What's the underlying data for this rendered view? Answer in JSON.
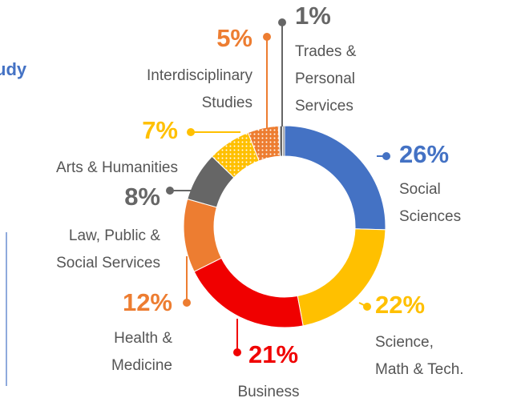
{
  "header": {
    "fragment": "udy"
  },
  "chart_data": {
    "type": "donut",
    "categories": [
      [
        "Social",
        "Sciences"
      ],
      [
        "Science,",
        "Math & Tech."
      ],
      [
        "Business"
      ],
      [
        "Health &",
        "Medicine"
      ],
      [
        "Law, Public &",
        "Social Services"
      ],
      [
        "Arts & Humanities"
      ],
      [
        "Interdisciplinary",
        "Studies"
      ],
      [
        "Trades &",
        "Personal",
        "Services"
      ]
    ],
    "values": [
      26,
      22,
      21,
      12,
      8,
      7,
      5,
      1
    ],
    "value_labels": [
      "26%",
      "22%",
      "21%",
      "12%",
      "8%",
      "7%",
      "5%",
      "1%"
    ],
    "colors": [
      "#4472c4",
      "#ffc000",
      "#f00000",
      "#ed7d31",
      "#666666",
      "#ffc000",
      "#ed7d31",
      "#666666"
    ],
    "patterned": [
      false,
      false,
      false,
      false,
      false,
      true,
      true,
      true
    ]
  }
}
